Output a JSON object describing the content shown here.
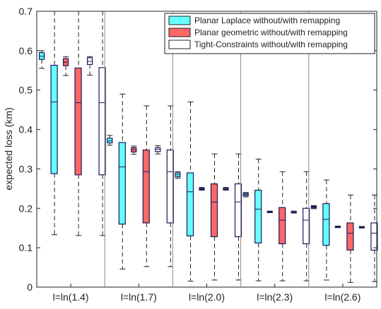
{
  "chart_data": {
    "type": "box",
    "ylabel": "expected loss (km)",
    "ylim": [
      0,
      0.7
    ],
    "yticks": [
      0,
      0.1,
      0.2,
      0.3,
      0.4,
      0.5,
      0.6,
      0.7
    ],
    "ytick_labels": [
      "0",
      "0.1",
      "0.2",
      "0.3",
      "0.4",
      "0.5",
      "0.6",
      "0.7"
    ],
    "categories": [
      "l=ln(1.4)",
      "l=ln(1.7)",
      "l=ln(2.0)",
      "l=ln(2.3)",
      "l=ln(2.6)"
    ],
    "grid": false,
    "legend_position": "top-right",
    "series": [
      {
        "name": "Planar Laplace without/with remapping",
        "color": "#66ffff",
        "without": [
          {
            "min": 0.555,
            "q1": 0.578,
            "median": 0.586,
            "q3": 0.595,
            "max": 0.6
          },
          {
            "min": 0.36,
            "q1": 0.366,
            "median": 0.371,
            "q3": 0.378,
            "max": 0.385
          },
          {
            "min": 0.276,
            "q1": 0.28,
            "median": 0.285,
            "q3": 0.29,
            "max": 0.293
          },
          {
            "min": 0.229,
            "q1": 0.232,
            "median": 0.235,
            "q3": 0.238,
            "max": 0.24
          },
          {
            "min": 0.199,
            "q1": 0.201,
            "median": 0.203,
            "q3": 0.205,
            "max": 0.207
          }
        ],
        "with": [
          {
            "min": 0.133,
            "q1": 0.288,
            "median": 0.47,
            "q3": 0.563,
            "max": 0.7
          },
          {
            "min": 0.046,
            "q1": 0.16,
            "median": 0.305,
            "q3": 0.367,
            "max": 0.49
          },
          {
            "min": 0.015,
            "q1": 0.13,
            "median": 0.242,
            "q3": 0.29,
            "max": 0.47
          },
          {
            "min": 0.016,
            "q1": 0.112,
            "median": 0.198,
            "q3": 0.246,
            "max": 0.325
          },
          {
            "min": 0.018,
            "q1": 0.106,
            "median": 0.172,
            "q3": 0.212,
            "max": 0.272
          }
        ]
      },
      {
        "name": "Planar geometric without/with remapping",
        "color": "#ff6666",
        "without": [
          {
            "min": 0.537,
            "q1": 0.562,
            "median": 0.571,
            "q3": 0.58,
            "max": 0.585
          },
          {
            "min": 0.337,
            "q1": 0.343,
            "median": 0.349,
            "q3": 0.354,
            "max": 0.358
          },
          {
            "min": 0.246,
            "q1": 0.247,
            "median": 0.249,
            "q3": 0.251,
            "max": 0.253
          },
          {
            "min": 0.189,
            "q1": 0.19,
            "median": 0.191,
            "q3": 0.192,
            "max": 0.193
          },
          {
            "min": 0.151,
            "q1": 0.152,
            "median": 0.153,
            "q3": 0.154,
            "max": 0.155
          }
        ],
        "with": [
          {
            "min": 0.131,
            "q1": 0.285,
            "median": 0.468,
            "q3": 0.556,
            "max": 0.7
          },
          {
            "min": 0.052,
            "q1": 0.163,
            "median": 0.293,
            "q3": 0.348,
            "max": 0.46
          },
          {
            "min": 0.018,
            "q1": 0.128,
            "median": 0.216,
            "q3": 0.262,
            "max": 0.338
          },
          {
            "min": 0.016,
            "q1": 0.11,
            "median": 0.17,
            "q3": 0.202,
            "max": 0.293
          },
          {
            "min": 0.012,
            "q1": 0.094,
            "median": 0.137,
            "q3": 0.163,
            "max": 0.234
          }
        ]
      },
      {
        "name": "Tight-Constraints without/with remapping",
        "color": "#ffffff",
        "without": [
          {
            "min": 0.538,
            "q1": 0.565,
            "median": 0.573,
            "q3": 0.582,
            "max": 0.585
          },
          {
            "min": 0.338,
            "q1": 0.344,
            "median": 0.35,
            "q3": 0.354,
            "max": 0.359
          },
          {
            "min": 0.246,
            "q1": 0.247,
            "median": 0.249,
            "q3": 0.251,
            "max": 0.253
          },
          {
            "min": 0.188,
            "q1": 0.189,
            "median": 0.19,
            "q3": 0.191,
            "max": 0.193
          },
          {
            "min": 0.15,
            "q1": 0.151,
            "median": 0.152,
            "q3": 0.153,
            "max": 0.154
          }
        ],
        "with": [
          {
            "min": 0.131,
            "q1": 0.285,
            "median": 0.468,
            "q3": 0.557,
            "max": 0.7
          },
          {
            "min": 0.052,
            "q1": 0.163,
            "median": 0.293,
            "q3": 0.348,
            "max": 0.46
          },
          {
            "min": 0.018,
            "q1": 0.128,
            "median": 0.216,
            "q3": 0.262,
            "max": 0.338
          },
          {
            "min": 0.016,
            "q1": 0.11,
            "median": 0.17,
            "q3": 0.2,
            "max": 0.293
          },
          {
            "min": 0.014,
            "q1": 0.094,
            "median": 0.137,
            "q3": 0.163,
            "max": 0.234
          }
        ]
      }
    ]
  }
}
